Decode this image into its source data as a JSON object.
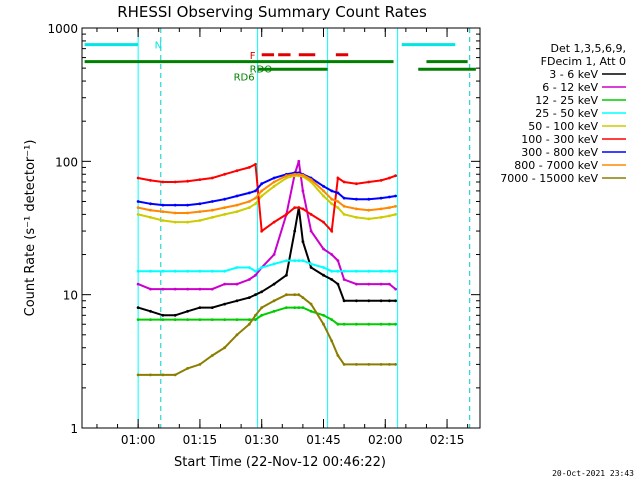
{
  "chart_data": {
    "type": "line",
    "title": "RHESSI Observing Summary Count Rates",
    "xlabel": "Start Time (22-Nov-12 00:46:22)",
    "ylabel": "Count Rate (s⁻¹ detector⁻¹)",
    "y_scale": "log",
    "ylim": [
      1,
      1000
    ],
    "xlim_minutes": [
      46.37,
      143.0
    ],
    "y_ticks": [
      {
        "value": 1,
        "label": "1"
      },
      {
        "value": 10,
        "label": "10"
      },
      {
        "value": 100,
        "label": "100"
      },
      {
        "value": 1000,
        "label": "1000"
      }
    ],
    "x_ticks": [
      {
        "value": 60,
        "label": "01:00"
      },
      {
        "value": 75,
        "label": "01:15"
      },
      {
        "value": 90,
        "label": "01:30"
      },
      {
        "value": 105,
        "label": "01:45"
      },
      {
        "value": 120,
        "label": "02:00"
      },
      {
        "value": 135,
        "label": "02:15"
      }
    ],
    "legend_header": [
      "Det 1,3,5,6,9,",
      "FDecim 1, Att 0"
    ],
    "legend_position": "right",
    "data_gaps_minutes": [
      [
        46.37,
        60.0
      ],
      [
        123.0,
        143.0
      ]
    ],
    "x": [
      60,
      63,
      66,
      69,
      72,
      75,
      78,
      81,
      84,
      87,
      88.5,
      90,
      93,
      96,
      98,
      99,
      100,
      102,
      105,
      107,
      108.5,
      110,
      113,
      116,
      119,
      121,
      122.5
    ],
    "series": [
      {
        "name": "3 - 6 keV",
        "color": "#000000",
        "values": [
          8.0,
          7.5,
          7.0,
          7.0,
          7.5,
          8.0,
          8.0,
          8.5,
          9.0,
          9.5,
          10.0,
          10.5,
          12.0,
          14.0,
          30.0,
          45.0,
          25.0,
          16.0,
          14.0,
          13.0,
          12.0,
          9.0,
          9.0,
          9.0,
          9.0,
          9.0,
          9.0
        ]
      },
      {
        "name": "6 - 12 keV",
        "color": "#cc00cc",
        "values": [
          12.0,
          11.0,
          11.0,
          11.0,
          11.0,
          11.0,
          11.0,
          12.0,
          12.0,
          13.0,
          14.0,
          16.0,
          20.0,
          40.0,
          80.0,
          100.0,
          60.0,
          30.0,
          22.0,
          20.0,
          18.0,
          13.0,
          12.0,
          12.0,
          12.0,
          12.0,
          11.0
        ]
      },
      {
        "name": "12 - 25 keV",
        "color": "#00cc00",
        "values": [
          6.5,
          6.5,
          6.5,
          6.5,
          6.5,
          6.5,
          6.5,
          6.5,
          6.5,
          6.5,
          6.5,
          7.0,
          7.5,
          8.0,
          8.0,
          8.0,
          8.0,
          7.5,
          7.0,
          6.5,
          6.0,
          6.0,
          6.0,
          6.0,
          6.0,
          6.0,
          6.0
        ]
      },
      {
        "name": "25 - 50 keV",
        "color": "#00ffff",
        "values": [
          15.0,
          15.0,
          15.0,
          15.0,
          15.0,
          15.0,
          15.0,
          15.0,
          16.0,
          16.0,
          15.0,
          16.0,
          17.0,
          18.0,
          18.0,
          18.0,
          18.0,
          17.0,
          16.0,
          15.0,
          15.0,
          15.0,
          15.0,
          15.0,
          15.0,
          15.0,
          15.0
        ]
      },
      {
        "name": "50 - 100 keV",
        "color": "#cccc00",
        "values": [
          40.0,
          38.0,
          36.0,
          35.0,
          35.0,
          36.0,
          38.0,
          40.0,
          42.0,
          45.0,
          48.0,
          55.0,
          65.0,
          75.0,
          78.0,
          78.0,
          77.0,
          70.0,
          55.0,
          48.0,
          45.0,
          40.0,
          38.0,
          37.0,
          38.0,
          39.0,
          40.0
        ]
      },
      {
        "name": "100 - 300 keV",
        "color": "#ff0000",
        "values": [
          75.0,
          72.0,
          70.0,
          70.0,
          71.0,
          73.0,
          75.0,
          80.0,
          85.0,
          90.0,
          95.0,
          30.0,
          35.0,
          40.0,
          45.0,
          45.0,
          44.0,
          40.0,
          35.0,
          30.0,
          75.0,
          70.0,
          68.0,
          70.0,
          72.0,
          75.0,
          78.0
        ]
      },
      {
        "name": "300 - 800 keV",
        "color": "#0000ff",
        "values": [
          50.0,
          48.0,
          47.0,
          47.0,
          47.0,
          48.0,
          50.0,
          52.0,
          55.0,
          58.0,
          60.0,
          68.0,
          75.0,
          80.0,
          82.0,
          82.0,
          80.0,
          75.0,
          65.0,
          60.0,
          58.0,
          53.0,
          52.0,
          52.0,
          53.0,
          54.0,
          55.0
        ]
      },
      {
        "name": "800 - 7000 keV",
        "color": "#ff8800",
        "values": [
          45.0,
          43.0,
          42.0,
          41.0,
          41.0,
          42.0,
          43.0,
          45.0,
          47.0,
          50.0,
          53.0,
          60.0,
          70.0,
          78.0,
          80.0,
          80.0,
          79.0,
          73.0,
          60.0,
          52.0,
          50.0,
          46.0,
          44.0,
          43.0,
          44.0,
          45.0,
          46.0
        ]
      },
      {
        "name": "7000 - 15000 keV",
        "color": "#8b7d00",
        "values": [
          2.5,
          2.5,
          2.5,
          2.5,
          2.8,
          3.0,
          3.5,
          4.0,
          5.0,
          6.0,
          7.0,
          8.0,
          9.0,
          10.0,
          10.0,
          10.0,
          9.5,
          8.5,
          6.0,
          4.5,
          3.5,
          3.0,
          3.0,
          3.0,
          3.0,
          3.0,
          3.0
        ]
      }
    ],
    "status_bars": [
      {
        "label": "N",
        "color": "#00e5e5",
        "value": 750,
        "segments": [
          [
            47,
            60
          ],
          [
            124,
            137
          ]
        ]
      },
      {
        "label": "F",
        "color": "#e00000",
        "value": 630,
        "segments": [
          [
            90,
            93
          ],
          [
            94,
            97
          ],
          [
            99,
            103
          ],
          [
            108,
            111
          ]
        ]
      },
      {
        "label": "RDO",
        "color": "#008000",
        "value": 560,
        "segments": [
          [
            47,
            122
          ],
          [
            130,
            140
          ]
        ]
      },
      {
        "label": "RD6",
        "color": "#008000",
        "value": 490,
        "segments": [
          [
            89,
            106
          ],
          [
            128,
            142
          ]
        ]
      }
    ],
    "vertical_lines": [
      {
        "name": "night-start",
        "color": "#00cccc",
        "style": "dashed",
        "x": 65.5
      },
      {
        "name": "night-end",
        "color": "#00cccc",
        "style": "dashed",
        "x": 140.5
      },
      {
        "name": "attenuator-1",
        "color": "#00ffff",
        "style": "solid",
        "x": 89.0
      },
      {
        "name": "attenuator-2",
        "color": "#00ffff",
        "style": "solid",
        "x": 106.0
      },
      {
        "name": "saa-edge-1",
        "color": "#00ffff",
        "style": "solid",
        "x": 60.0
      },
      {
        "name": "saa-edge-2",
        "color": "#00ffff",
        "style": "solid",
        "x": 123.0
      }
    ]
  },
  "footer": {
    "timestamp": "20-Oct-2021 23:43"
  }
}
